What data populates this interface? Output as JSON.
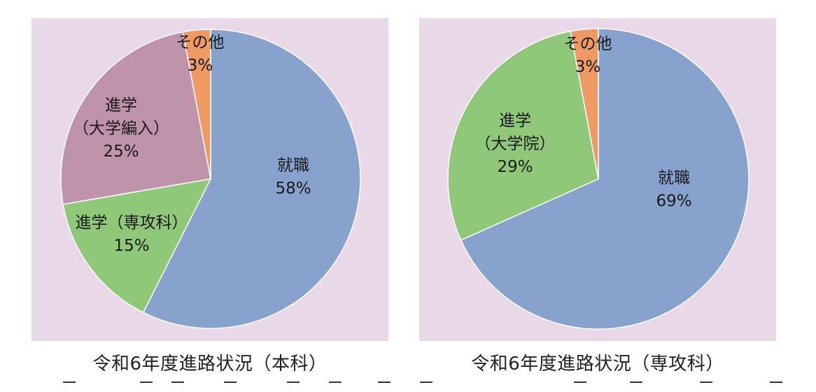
{
  "colors": {
    "panel_bg": "#e8d8e8",
    "employment": "#88a2ce",
    "advance": "#8fc878",
    "transfer": "#bf93a9",
    "other": "#ee9a62"
  },
  "chart_data": [
    {
      "type": "pie",
      "title": "令和6年度進路状況（本科）",
      "start_angle_deg": 0,
      "direction": "clockwise",
      "slices": [
        {
          "label": "就職",
          "value": 58,
          "value_label": "58%",
          "color": "#88a2ce"
        },
        {
          "label": "進学（専攻科）",
          "value": 15,
          "value_label": "15%",
          "color": "#8fc878"
        },
        {
          "label": "進学（大学編入）",
          "label_lines": [
            "進学",
            "（大学編入）"
          ],
          "value": 25,
          "value_label": "25%",
          "color": "#bf93a9"
        },
        {
          "label": "その他",
          "value": 3,
          "value_label": "3%",
          "color": "#ee9a62"
        }
      ]
    },
    {
      "type": "pie",
      "title": "令和6年度進路状況（専攻科）",
      "start_angle_deg": 0,
      "direction": "clockwise",
      "slices": [
        {
          "label": "就職",
          "value": 69,
          "value_label": "69%",
          "color": "#88a2ce"
        },
        {
          "label": "進学（大学院）",
          "label_lines": [
            "進学",
            "（大学院）"
          ],
          "value": 29,
          "value_label": "29%",
          "color": "#8fc878"
        },
        {
          "label": "その他",
          "value": 3,
          "value_label": "3%",
          "color": "#ee9a62"
        }
      ]
    }
  ]
}
